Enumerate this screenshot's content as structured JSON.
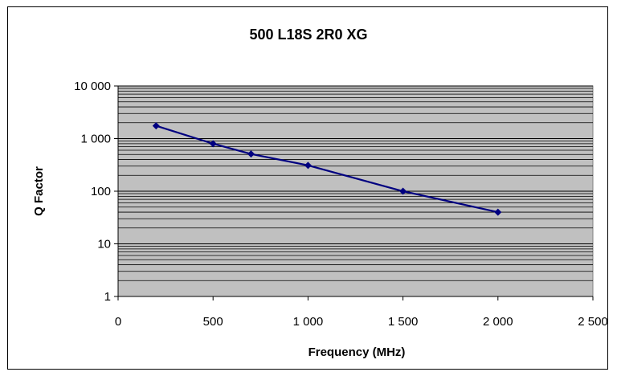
{
  "chart_data": {
    "type": "line",
    "title": "500 L18S 2R0 XG",
    "xlabel": "Frequency (MHz)",
    "ylabel": "Q Factor",
    "xlim": [
      0,
      2500
    ],
    "ylim": [
      1,
      10000
    ],
    "y_scale": "log",
    "x_ticks": [
      0,
      500,
      1000,
      1500,
      2000,
      2500
    ],
    "x_tick_labels": [
      "0",
      "500",
      "1 000",
      "1 500",
      "2 000",
      "2 500"
    ],
    "y_ticks": [
      1,
      10,
      100,
      1000,
      10000
    ],
    "y_tick_labels": [
      "1",
      "10",
      "100",
      "1 000",
      "10 000"
    ],
    "grid": true,
    "series": [
      {
        "x": [
          200,
          500,
          700,
          1000,
          1500,
          2000
        ],
        "y": [
          1750,
          800,
          510,
          310,
          100,
          40
        ]
      }
    ],
    "colors": {
      "plot_background": "#c0c0c0",
      "gridline": "#000000",
      "series": "#000080"
    }
  }
}
